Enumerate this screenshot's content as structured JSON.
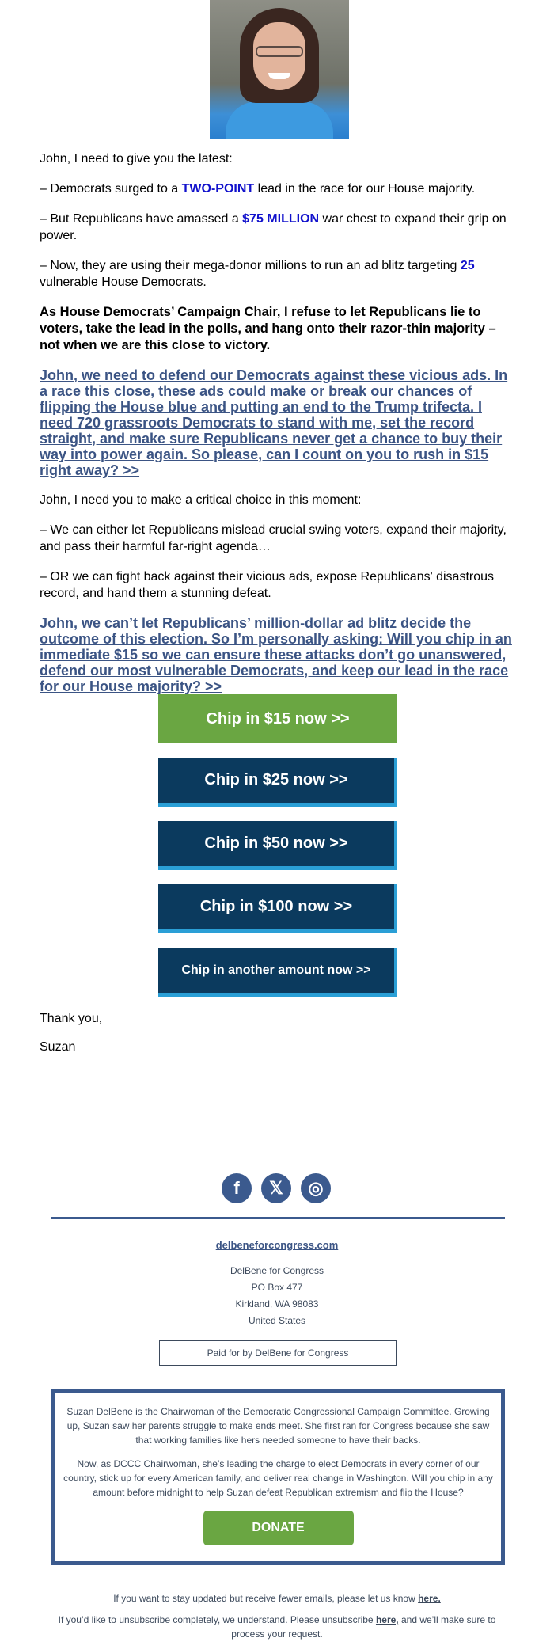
{
  "body": {
    "greeting": "John, I need to give you the latest:",
    "bullet1": {
      "pre": "– Democrats surged to a ",
      "highlight": "TWO-POINT",
      "post": " lead in the race for our House majority."
    },
    "bullet2": {
      "pre": "– But Republicans have amassed a ",
      "highlight": "$75 MILLION",
      "post": " war chest to expand their grip on power."
    },
    "bullet3": {
      "pre": "– Now, they are using their mega-donor millions to run an ad blitz targeting ",
      "highlight": "25",
      "post": " vulnerable House Democrats."
    },
    "bold_para": "As House Democrats’ Campaign Chair, I refuse to let Republicans lie to voters, take the lead in the polls, and hang onto their razor-thin majority – not when we are this close to victory.",
    "cta1": "John, we need to defend our Democrats against these vicious ads. In a race this close, these ads could make or break our chances of flipping the House blue and putting an end to the Trump trifecta. I need 720 grassroots Democrats to stand with me, set the record straight, and make sure Republicans never get a chance to buy their way into power again. So please, can I count on you to rush in $15 right away? >>",
    "choice": "John, I need you to make a critical choice in this moment:",
    "option1": "– We can either let Republicans mislead crucial swing voters, expand their majority, and pass their harmful far-right agenda…",
    "option2": "– OR we can fight back against their vicious ads, expose Republicans' disastrous record, and hand them a stunning defeat.",
    "cta2": "John, we can’t let Republicans’ million-dollar ad blitz decide the outcome of this election. So I’m personally asking: Will you chip in an immediate $15 so we can ensure these attacks don’t go unanswered, defend our most vulnerable Democrats, and keep our lead in the race for our House majority? >>"
  },
  "buttons": [
    "Chip in $15 now >>",
    "Chip in $25 now >>",
    "Chip in $50 now >>",
    "Chip in $100 now >>",
    "Chip in another amount now >>"
  ],
  "signoff": {
    "thanks": "Thank you,",
    "name": "Suzan"
  },
  "social": [
    {
      "icon": "facebook-icon",
      "glyph": "f"
    },
    {
      "icon": "x-icon",
      "glyph": "𝕏"
    },
    {
      "icon": "instagram-icon",
      "glyph": "◎"
    }
  ],
  "footer": {
    "website": "delbeneforcongress.com",
    "address": [
      "DelBene for Congress",
      "PO Box 477",
      "Kirkland, WA 98083",
      "United States"
    ],
    "paid_for": "Paid for by DelBene for Congress",
    "bio1": "Suzan DelBene is the Chairwoman of the Democratic Congressional Campaign Committee. Growing up, Suzan saw her parents struggle to make ends meet. She first ran for Congress because she saw that working families like hers needed someone to have their backs.",
    "bio2": "Now, as DCCC Chairwoman, she’s leading the charge to elect Democrats in every corner of our country, stick up for every American family, and deliver real change in Washington. Will you chip in any amount before midnight to help Suzan defeat Republican extremism and flip the House?",
    "donate": "DONATE",
    "fewer_pre": "If you want to stay updated but receive fewer emails, please let us know ",
    "fewer_link": "here.",
    "unsub_pre": "If you’d like to unsubscribe completely, we understand. Please unsubscribe ",
    "unsub_link": "here,",
    "unsub_post": " and we’ll make sure to process your request."
  },
  "colors": {
    "green": "#6aa642",
    "navy": "#0b3a5e",
    "accent_blue": "#2a9fd6",
    "link": "#3b5484",
    "highlight": "#1111cc"
  }
}
